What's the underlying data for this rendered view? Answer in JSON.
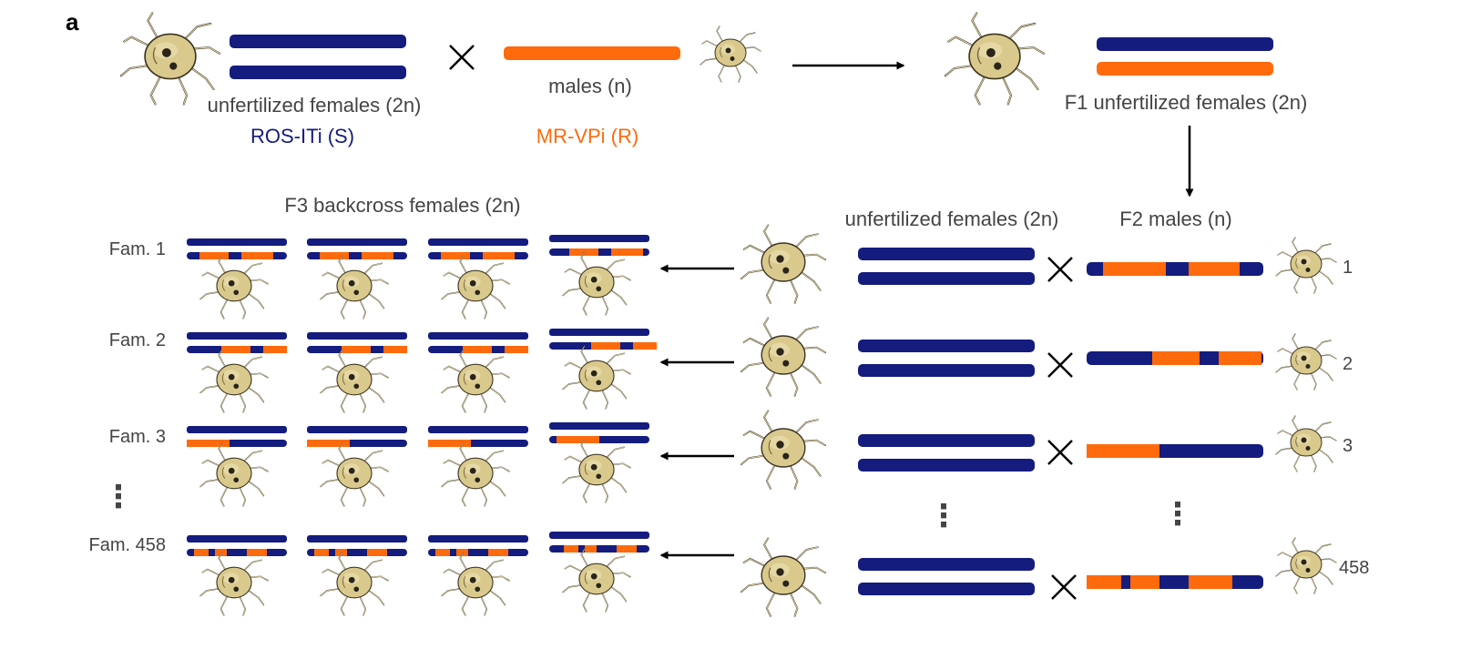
{
  "panel_label": "a",
  "colors": {
    "susceptible": "#141c7e",
    "resistant": "#ff6a0c",
    "label_gray": "#444444",
    "mite_body": "#d9c98d",
    "mite_outline": "#3c3421"
  },
  "parents": {
    "female_label": "unfertilized females (2n)",
    "female_strain": "ROS-ITi (S)",
    "male_label": "males (n)",
    "male_strain": "MR-VPi (R)",
    "cross_symbol": "×"
  },
  "f1": {
    "label": "F1 unfertilized females (2n)"
  },
  "f2": {
    "female_label": "unfertilized females (2n)",
    "male_label": "F2 males (n)",
    "male_ids": [
      "1",
      "2",
      "3",
      "458"
    ],
    "ellipsis": "⋮"
  },
  "f3": {
    "label": "F3 backcross females (2n)",
    "families": [
      "Fam. 1",
      "Fam. 2",
      "Fam. 3",
      "Fam. 458"
    ],
    "ellipsis": "⋮"
  },
  "icons": [
    "mite-icon",
    "arrow-right-icon",
    "arrow-down-icon",
    "arrow-left-icon",
    "cross-icon"
  ]
}
